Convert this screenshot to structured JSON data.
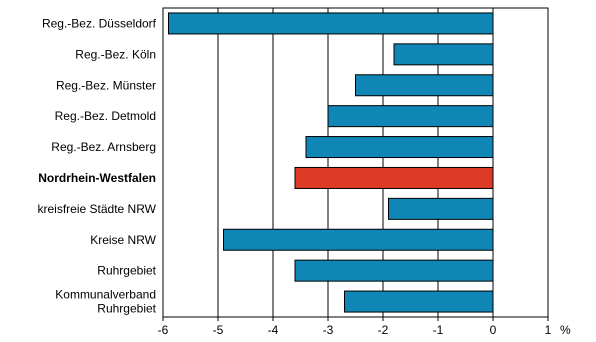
{
  "chart_data": {
    "type": "bar",
    "orientation": "horizontal",
    "categories": [
      "Reg.-Bez. Düsseldorf",
      "Reg.-Bez. Köln",
      "Reg.-Bez. Münster",
      "Reg.-Bez. Detmold",
      "Reg.-Bez. Arnsberg",
      "Nordrhein-Westfalen",
      "kreisfreie Städte NRW",
      "Kreise NRW",
      "Ruhrgebiet",
      "Kommunalverband Ruhrgebiet"
    ],
    "category_label_lines": [
      [
        "Reg.-Bez. Düsseldorf"
      ],
      [
        "Reg.-Bez. Köln"
      ],
      [
        "Reg.-Bez. Münster"
      ],
      [
        "Reg.-Bez. Detmold"
      ],
      [
        "Reg.-Bez. Arnsberg"
      ],
      [
        "Nordrhein-Westfalen"
      ],
      [
        "kreisfreie Städte NRW"
      ],
      [
        "Kreise NRW"
      ],
      [
        "Ruhrgebiet"
      ],
      [
        "Kommunalverband",
        "Ruhrgebiet"
      ]
    ],
    "values": [
      -5.9,
      -1.8,
      -2.5,
      -3.0,
      -3.4,
      -3.6,
      -1.9,
      -4.9,
      -3.6,
      -2.7
    ],
    "highlight_index": 5,
    "xlim": [
      -6,
      1
    ],
    "xticks": [
      -6,
      -5,
      -4,
      -3,
      -2,
      -1,
      0,
      1
    ],
    "x_unit": "%",
    "grid": "vertical",
    "title": "",
    "xlabel": "",
    "ylabel": "",
    "colors": {
      "bar": "#0f86b6",
      "highlight": "#de3b26",
      "outline": "#000000",
      "grid": "#000000"
    }
  }
}
